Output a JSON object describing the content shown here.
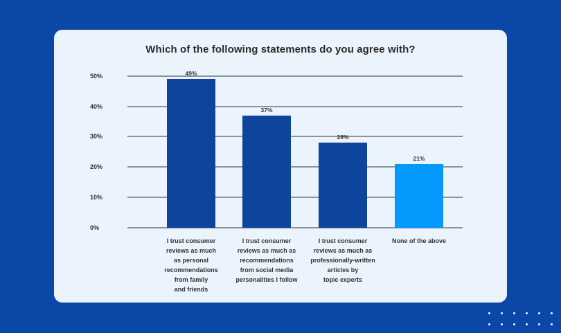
{
  "page": {
    "background_color": "#0B47A6",
    "card_color": "#EBF3FC"
  },
  "chart_data": {
    "type": "bar",
    "title": "Which of the following statements do you agree with?",
    "xlabel": "",
    "ylabel": "",
    "ylim": [
      0,
      50
    ],
    "yticks": [
      "0%",
      "10%",
      "20%",
      "30%",
      "40%",
      "50%"
    ],
    "grid": true,
    "legend": null,
    "categories": [
      "I trust consumer\nreviews as much\nas personal\nrecommendations\nfrom family\nand friends",
      "I trust consumer\nreviews as much as\nrecommendations\nfrom social media\npersonalities I follow",
      "I trust consumer\nreviews as much as\nprofessionally-written\narticles by\ntopic experts",
      "None of the above"
    ],
    "values": [
      49,
      37,
      28,
      21
    ],
    "value_labels": [
      "49%",
      "37%",
      "28%",
      "21%"
    ],
    "colors": [
      "#0D459D",
      "#0D459D",
      "#0D459D",
      "#0399FD"
    ]
  }
}
